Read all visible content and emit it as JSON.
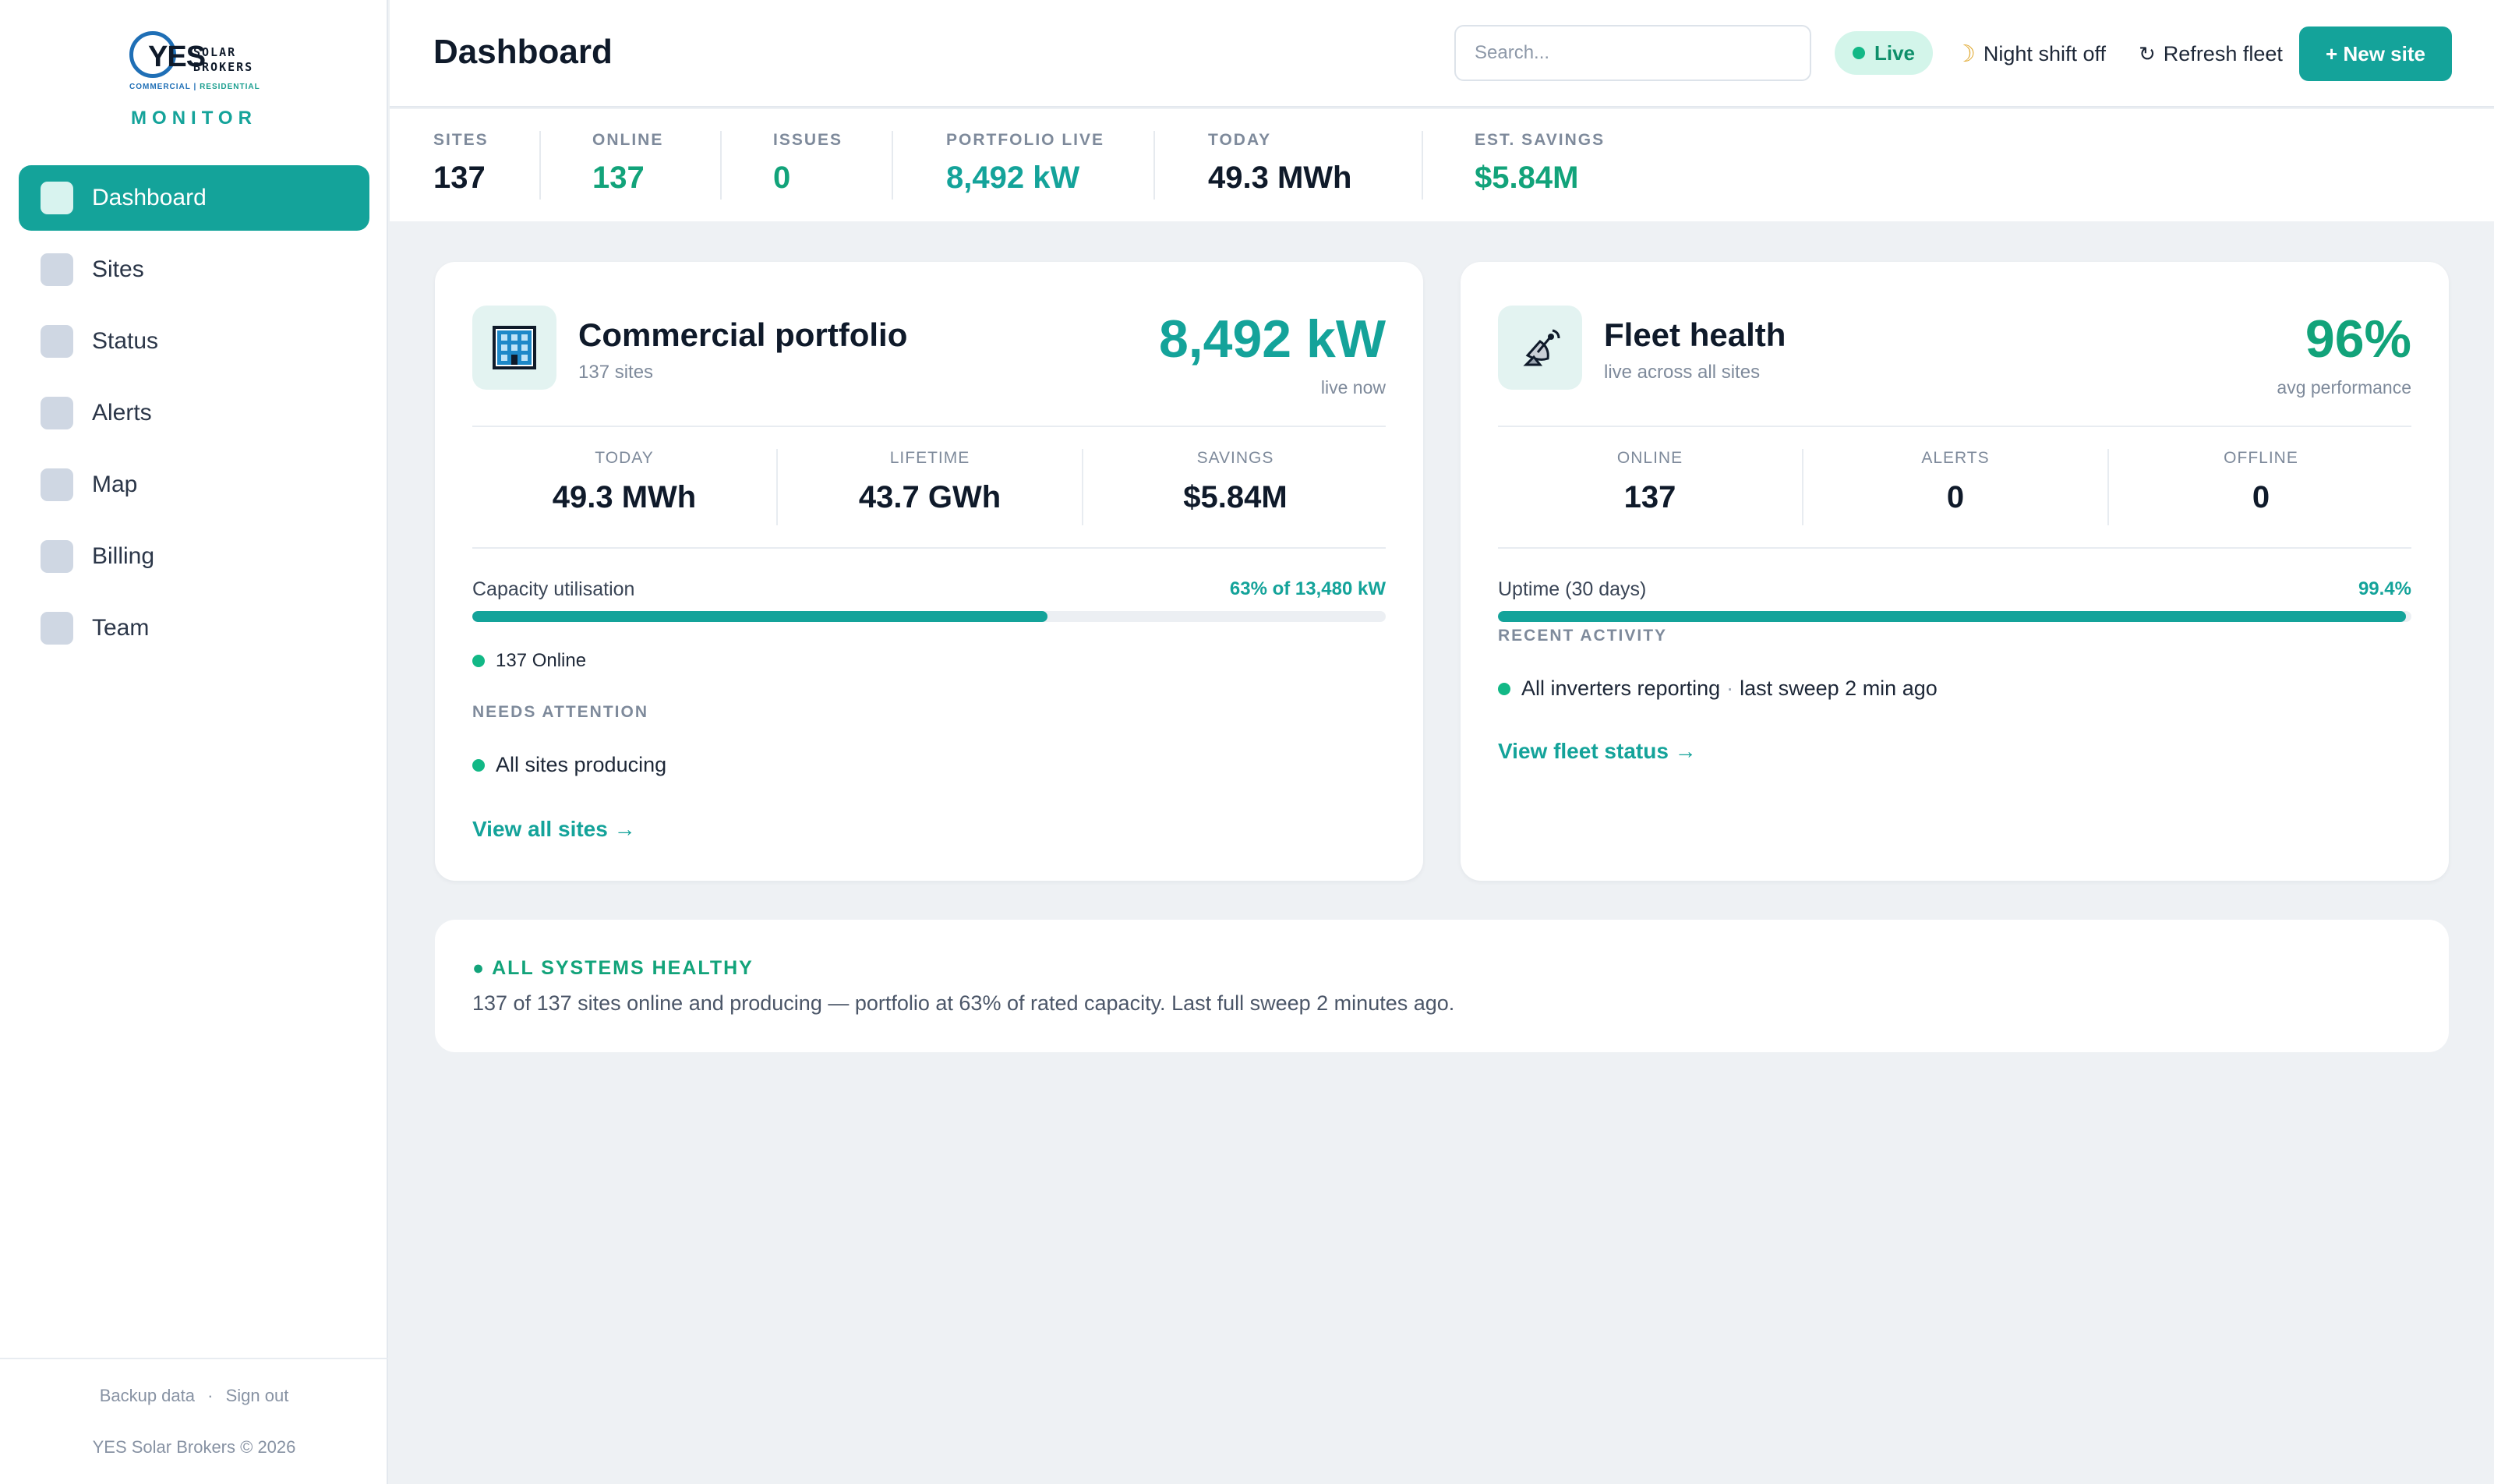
{
  "brand": {
    "logo_word": "YES",
    "logo_line1": "SOLAR",
    "logo_line2": "BROKERS",
    "logo_sub_left": "COMMERCIAL",
    "logo_sub_right": "RESIDENTIAL",
    "app_label": "MONITOR"
  },
  "sidebar": {
    "items": [
      {
        "label": "Dashboard",
        "active": true
      },
      {
        "label": "Sites"
      },
      {
        "label": "Status"
      },
      {
        "label": "Alerts"
      },
      {
        "label": "Map"
      },
      {
        "label": "Billing"
      },
      {
        "label": "Team"
      }
    ],
    "footer": {
      "backup": "Backup data",
      "separator": "·",
      "signout": "Sign out",
      "copyright": "YES Solar Brokers © 2026"
    }
  },
  "header": {
    "title": "Dashboard",
    "search_placeholder": "Search...",
    "live_label": "Live",
    "night_shift": "Night shift off",
    "refresh": "Refresh fleet",
    "new_site": "+ New site"
  },
  "stats": [
    {
      "label": "SITES",
      "value": "137",
      "tone": "dark"
    },
    {
      "label": "ONLINE",
      "value": "137",
      "tone": "green"
    },
    {
      "label": "ISSUES",
      "value": "0",
      "tone": "green"
    },
    {
      "label": "PORTFOLIO LIVE",
      "value": "8,492 kW",
      "tone": "teal"
    },
    {
      "label": "TODAY",
      "value": "49.3 MWh",
      "tone": "dark"
    },
    {
      "label": "EST. SAVINGS",
      "value": "$5.84M",
      "tone": "green"
    }
  ],
  "portfolio_card": {
    "title": "Commercial portfolio",
    "subtitle": "137 sites",
    "big_value": "8,492 kW",
    "big_caption": "live now",
    "metrics": [
      {
        "label": "TODAY",
        "value": "49.3 MWh"
      },
      {
        "label": "LIFETIME",
        "value": "43.7 GWh"
      },
      {
        "label": "SAVINGS",
        "value": "$5.84M"
      }
    ],
    "capacity_label": "Capacity utilisation",
    "capacity_value": "63% of 13,480 kW",
    "capacity_fraction": 0.63,
    "online_text": "137 Online",
    "attention_label": "NEEDS ATTENTION",
    "attention_item": "All sites producing",
    "link": "View all sites →",
    "colors": {
      "accent": "#14a39a"
    }
  },
  "fleet_card": {
    "title": "Fleet health",
    "subtitle": "live across all sites",
    "big_value": "96%",
    "big_caption": "avg performance",
    "metrics": [
      {
        "label": "ONLINE",
        "value": "137"
      },
      {
        "label": "ALERTS",
        "value": "0"
      },
      {
        "label": "OFFLINE",
        "value": "0"
      }
    ],
    "uptime_label": "Uptime (30 days)",
    "uptime_value": "99.4%",
    "uptime_fraction": 0.994,
    "activity_label": "RECENT ACTIVITY",
    "activity_item": "All inverters reporting",
    "activity_sep": "·",
    "activity_time": "last sweep 2 min ago",
    "link": "View fleet status →",
    "colors": {
      "accent": "#12a37a"
    }
  },
  "health_banner": {
    "title": "● ALL SYSTEMS HEALTHY",
    "text": "137 of 137 sites online and producing — portfolio at 63% of rated capacity. Last full sweep 2 minutes ago."
  },
  "icons": {
    "nav": "square-icon",
    "portfolio": "building-icon",
    "fleet": "satellite-dish-icon",
    "night": "moon-icon",
    "refresh": "refresh-icon"
  }
}
